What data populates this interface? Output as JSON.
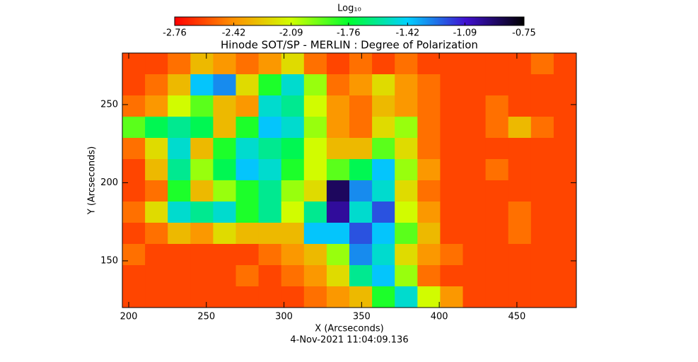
{
  "chart_data": {
    "type": "heatmap",
    "title": "Hinode SOT/SP - MERLIN : Degree of Polarization",
    "x_label": "X (Arcseconds)",
    "y_label": "Y (Arcseconds)",
    "footer": "4-Nov-2021 11:04:09.136",
    "colorbar_label": "Log₁₀",
    "clim": [
      -2.76,
      -0.75
    ],
    "colorbar_ticks": [
      -2.76,
      -2.42,
      -2.09,
      -1.76,
      -1.42,
      -1.09,
      -0.75
    ],
    "colorscale": [
      "#ff0000",
      "#ff9000",
      "#d0ff00",
      "#00ff30",
      "#00d0ff",
      "#4010d0",
      "#000000"
    ],
    "xlim": [
      195.9,
      488.3
    ],
    "ylim": [
      120.1,
      283
    ],
    "xticks": [
      200,
      250,
      300,
      350,
      400,
      450
    ],
    "yticks": [
      150,
      200,
      250
    ],
    "z": [
      [
        -2.6,
        -2.6,
        -2.5,
        -2.3,
        -2.4,
        -2.5,
        -2.4,
        -2.2,
        -2.5,
        -2.6,
        -2.5,
        -2.6,
        -2.5,
        -2.6,
        -2.6,
        -2.6,
        -2.6,
        -2.6,
        -2.5,
        -2.6
      ],
      [
        -2.6,
        -2.5,
        -2.3,
        -1.4,
        -1.3,
        -2.2,
        -1.8,
        -1.5,
        -2.0,
        -2.5,
        -2.4,
        -2.2,
        -2.4,
        -2.5,
        -2.6,
        -2.6,
        -2.6,
        -2.6,
        -2.6,
        -2.6
      ],
      [
        -2.5,
        -2.4,
        -2.1,
        -1.9,
        -2.3,
        -2.4,
        -1.5,
        -1.6,
        -2.1,
        -2.4,
        -2.5,
        -2.3,
        -2.4,
        -2.5,
        -2.6,
        -2.6,
        -2.5,
        -2.6,
        -2.6,
        -2.6
      ],
      [
        -1.9,
        -1.7,
        -1.6,
        -1.7,
        -2.3,
        -1.8,
        -1.4,
        -1.5,
        -2.0,
        -2.4,
        -2.5,
        -2.2,
        -2.0,
        -2.5,
        -2.6,
        -2.6,
        -2.5,
        -2.3,
        -2.5,
        -2.6
      ],
      [
        -2.5,
        -2.2,
        -1.5,
        -2.3,
        -1.8,
        -1.5,
        -1.6,
        -1.7,
        -2.1,
        -2.3,
        -2.3,
        -1.9,
        -2.2,
        -2.5,
        -2.6,
        -2.6,
        -2.6,
        -2.6,
        -2.6,
        -2.6
      ],
      [
        -2.6,
        -2.3,
        -1.6,
        -2.0,
        -1.7,
        -1.4,
        -1.5,
        -1.8,
        -2.1,
        -1.9,
        -1.7,
        -1.4,
        -2.0,
        -2.4,
        -2.6,
        -2.6,
        -2.5,
        -2.6,
        -2.6,
        -2.6
      ],
      [
        -2.6,
        -2.5,
        -1.8,
        -2.3,
        -2.0,
        -1.8,
        -1.6,
        -2.0,
        -2.2,
        -0.9,
        -1.3,
        -1.5,
        -2.2,
        -2.5,
        -2.6,
        -2.6,
        -2.6,
        -2.6,
        -2.6,
        -2.6
      ],
      [
        -2.5,
        -2.2,
        -1.5,
        -1.6,
        -1.5,
        -1.8,
        -1.6,
        -2.1,
        -1.6,
        -1.0,
        -1.5,
        -1.2,
        -2.1,
        -2.4,
        -2.6,
        -2.6,
        -2.6,
        -2.5,
        -2.6,
        -2.6
      ],
      [
        -2.6,
        -2.5,
        -2.3,
        -2.4,
        -2.2,
        -2.3,
        -2.3,
        -2.3,
        -1.4,
        -1.4,
        -1.2,
        -1.4,
        -1.9,
        -2.3,
        -2.6,
        -2.6,
        -2.6,
        -2.5,
        -2.6,
        -2.6
      ],
      [
        -2.5,
        -2.6,
        -2.6,
        -2.6,
        -2.6,
        -2.6,
        -2.5,
        -2.4,
        -2.3,
        -2.0,
        -1.3,
        -1.5,
        -2.2,
        -2.4,
        -2.5,
        -2.6,
        -2.6,
        -2.6,
        -2.6,
        -2.6
      ],
      [
        -2.6,
        -2.6,
        -2.6,
        -2.6,
        -2.6,
        -2.5,
        -2.6,
        -2.5,
        -2.4,
        -2.2,
        -1.6,
        -1.4,
        -2.0,
        -2.5,
        -2.6,
        -2.6,
        -2.6,
        -2.6,
        -2.6,
        -2.6
      ],
      [
        -2.6,
        -2.6,
        -2.6,
        -2.6,
        -2.6,
        -2.6,
        -2.6,
        -2.6,
        -2.5,
        -2.4,
        -2.3,
        -1.8,
        -1.5,
        -2.1,
        -2.4,
        -2.6,
        -2.6,
        -2.6,
        -2.6,
        -2.6
      ]
    ]
  }
}
